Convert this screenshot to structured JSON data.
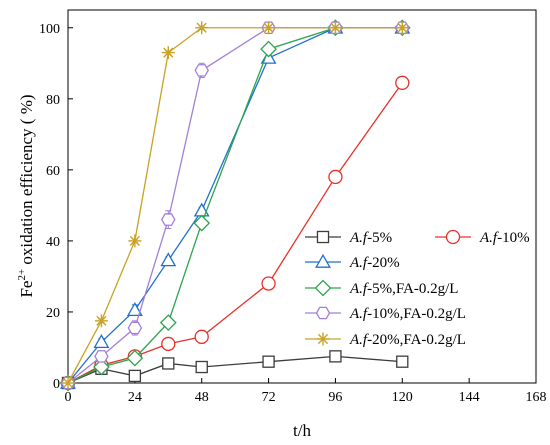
{
  "chart_data": {
    "type": "line",
    "xlabel": "t/h",
    "ylabel_main": "Fe",
    "ylabel_sup": "2+",
    "ylabel_rest": " oxidation efficiency ( %)",
    "xlim": [
      0,
      168
    ],
    "ylim": [
      0,
      105
    ],
    "xticks": [
      0,
      24,
      48,
      72,
      96,
      120,
      144,
      168
    ],
    "yticks": [
      0,
      20,
      40,
      60,
      80,
      100
    ],
    "grid": false,
    "legend_position": "bottom-right",
    "series": [
      {
        "name": "A.f-5%",
        "name_prefix": "A.f",
        "name_suffix": "-5%",
        "color": "#3c3c3c",
        "marker": "square",
        "x": [
          0,
          12,
          24,
          36,
          48,
          72,
          96,
          120
        ],
        "y": [
          0,
          4.0,
          2.0,
          5.5,
          4.5,
          6.0,
          7.5,
          6.0
        ],
        "err": [
          0,
          0.6,
          0.6,
          0.6,
          0.6,
          0.6,
          0.8,
          0.8
        ]
      },
      {
        "name": "A.f-10%",
        "name_prefix": "A.f",
        "name_suffix": "-10%",
        "color": "#e8312b",
        "marker": "circle",
        "x": [
          0,
          12,
          24,
          36,
          48,
          72,
          96,
          120
        ],
        "y": [
          0,
          5.0,
          7.5,
          11.0,
          13.0,
          28.0,
          58.0,
          84.5
        ],
        "err": [
          0,
          0.8,
          0.8,
          1.5,
          1.8,
          1.0,
          1.0,
          1.0
        ]
      },
      {
        "name": "A.f-20%",
        "name_prefix": "A.f",
        "name_suffix": "-20%",
        "color": "#1f6fd1",
        "marker": "triangle",
        "x": [
          0,
          12,
          24,
          36,
          48,
          72,
          96,
          120
        ],
        "y": [
          0,
          11.5,
          20.5,
          34.5,
          48.5,
          91.5,
          100,
          100
        ],
        "err": [
          0,
          1.0,
          1.5,
          1.0,
          1.0,
          1.0,
          0.5,
          0.5
        ]
      },
      {
        "name": "A.f-5%,FA-0.2g/L",
        "name_prefix": "A.f",
        "name_suffix": "-5%,FA-0.2g/L",
        "color": "#2ea44f",
        "marker": "diamond",
        "x": [
          0,
          12,
          24,
          36,
          48,
          72,
          96,
          120
        ],
        "y": [
          0,
          4.5,
          7.0,
          17.0,
          45.0,
          94.0,
          100,
          100
        ],
        "err": [
          0,
          0.5,
          0.5,
          0.8,
          1.0,
          0.8,
          0.5,
          0.5
        ]
      },
      {
        "name": "A.f-10%,FA-0.2g/L",
        "name_prefix": "A.f",
        "name_suffix": "-10%,FA-0.2g/L",
        "color": "#a37fd6",
        "marker": "hexagon",
        "x": [
          0,
          12,
          24,
          36,
          48,
          72,
          96,
          120
        ],
        "y": [
          0,
          7.5,
          15.5,
          46.0,
          88.0,
          100,
          100,
          100
        ],
        "err": [
          0,
          1.5,
          2.0,
          2.5,
          2.0,
          0.5,
          0.5,
          0.5
        ]
      },
      {
        "name": "A.f-20%,FA-0.2g/L",
        "name_prefix": "A.f",
        "name_suffix": "-20%,FA-0.2g/L",
        "color": "#c9a227",
        "marker": "asterisk",
        "x": [
          0,
          12,
          24,
          36,
          48,
          72,
          96,
          120
        ],
        "y": [
          0,
          17.5,
          40.0,
          93.0,
          100,
          100,
          100,
          100
        ],
        "err": [
          0,
          0.5,
          0.5,
          0.5,
          0.5,
          0.5,
          0.5,
          0.5
        ]
      }
    ]
  }
}
